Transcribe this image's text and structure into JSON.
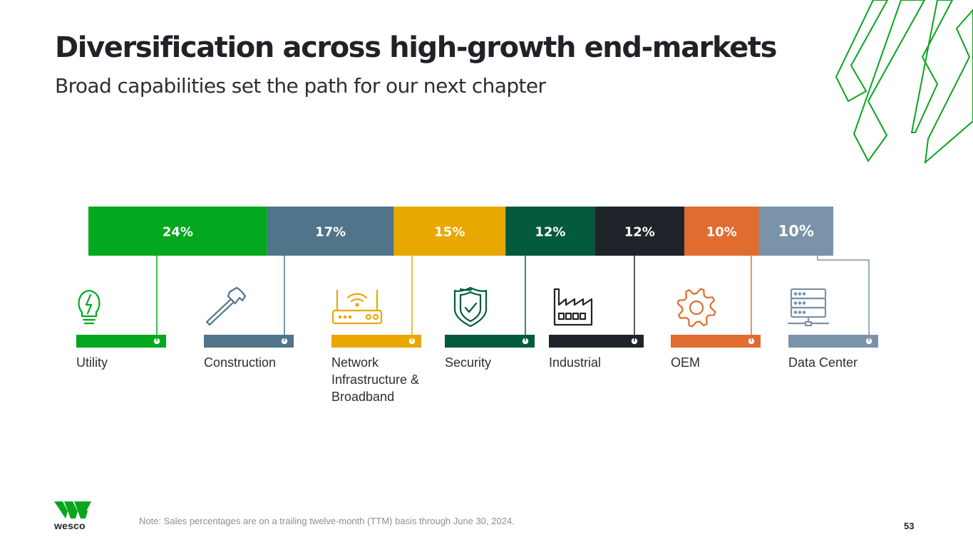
{
  "header": {
    "title": "Diversification across high-growth end-markets",
    "subtitle": "Broad capabilities set the path for our next chapter"
  },
  "chart_data": {
    "type": "bar",
    "title": "Diversification across high-growth end-markets",
    "subtitle": "Broad capabilities set the path for our next chapter",
    "orientation": "stacked-horizontal",
    "unit": "% of sales (TTM)",
    "categories": [
      "Utility",
      "Construction",
      "Network Infrastructure & Broadband",
      "Security",
      "Industrial",
      "OEM",
      "Data Center"
    ],
    "label_lines": [
      [
        "Utility"
      ],
      [
        "Construction"
      ],
      [
        "Network",
        "Infrastructure &",
        "Broadband"
      ],
      [
        "Security"
      ],
      [
        "Industrial"
      ],
      [
        "OEM"
      ],
      [
        "Data Center"
      ]
    ],
    "values": [
      24,
      17,
      15,
      12,
      12,
      10,
      10
    ],
    "value_labels": [
      "24%",
      "17%",
      "15%",
      "12%",
      "12%",
      "10%",
      "10%"
    ],
    "colors": [
      "#04a81e",
      "#50748a",
      "#e8a800",
      "#045a3e",
      "#1f242a",
      "#e06c30",
      "#7b93a8"
    ],
    "icons": [
      "lightbulb-icon",
      "hammer-icon",
      "router-icon",
      "shield-check-icon",
      "factory-icon",
      "gear-icon",
      "server-icon"
    ],
    "total": 100
  },
  "footer": {
    "note": "Note: Sales percentages are on a trailing twelve-month (TTM) basis through June 30, 2024.",
    "page_number": "53",
    "logo_text": "wesco"
  }
}
